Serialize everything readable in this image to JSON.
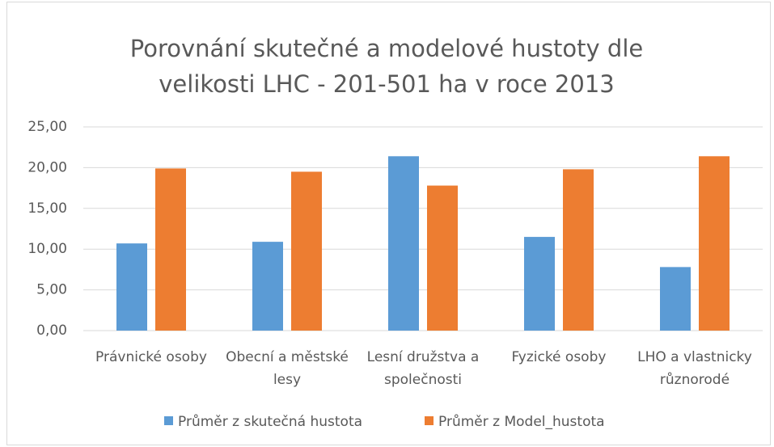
{
  "chart_data": {
    "type": "bar",
    "title": "Porovnání skutečné a modelové hustoty dle velikosti LHC - 201-501 ha v roce 2013",
    "categories": [
      "Právnické osoby",
      "Obecní a městské lesy",
      "Lesní družstva a společnosti",
      "Fyzické osoby",
      "LHO a vlastnicky různorodé"
    ],
    "series": [
      {
        "name": "Průměr z skutečná hustota",
        "color": "#5b9bd5",
        "values": [
          10.7,
          10.9,
          21.4,
          11.5,
          7.8
        ]
      },
      {
        "name": "Průměr z Model_hustota",
        "color": "#ed7d31",
        "values": [
          19.9,
          19.5,
          17.8,
          19.8,
          21.4
        ]
      }
    ],
    "ylim": [
      0,
      25
    ],
    "yticks": [
      {
        "value": 0,
        "label": "0,00"
      },
      {
        "value": 5,
        "label": "5,00"
      },
      {
        "value": 10,
        "label": "10,00"
      },
      {
        "value": 15,
        "label": "15,00"
      },
      {
        "value": 20,
        "label": "20,00"
      },
      {
        "value": 25,
        "label": "25,00"
      }
    ],
    "grid": true,
    "legend": "bottom"
  }
}
